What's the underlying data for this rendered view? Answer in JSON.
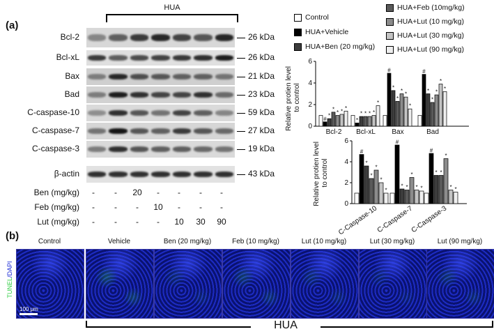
{
  "panel_a": {
    "label": "(a)",
    "hua_label": "HUA",
    "blots": [
      {
        "protein": "Bcl-2",
        "kda": "26 kDa",
        "intensity": [
          0.35,
          0.55,
          0.75,
          0.85,
          0.7,
          0.6,
          0.85
        ],
        "bg": "#d8d8d8"
      },
      {
        "protein": "Bcl-xL",
        "kda": "26 kDa",
        "intensity": [
          0.75,
          0.55,
          0.65,
          0.7,
          0.75,
          0.8,
          0.9
        ],
        "bg": "#e0e0e0"
      },
      {
        "protein": "Bax",
        "kda": "21 kDa",
        "intensity": [
          0.4,
          0.85,
          0.65,
          0.6,
          0.55,
          0.55,
          0.45
        ],
        "bg": "#cfcfcf"
      },
      {
        "protein": "Bad",
        "kda": "23 kDa",
        "intensity": [
          0.4,
          0.9,
          0.8,
          0.7,
          0.7,
          0.8,
          0.5
        ],
        "bg": "#d2d2d2"
      },
      {
        "protein": "C-caspase-10",
        "kda": "59 kDa",
        "intensity": [
          0.3,
          0.8,
          0.6,
          0.45,
          0.7,
          0.55,
          0.35
        ],
        "bg": "#dadada"
      },
      {
        "protein": "C-caspase-7",
        "kda": "27 kDa",
        "intensity": [
          0.45,
          0.95,
          0.6,
          0.55,
          0.75,
          0.6,
          0.5
        ],
        "bg": "#d6d6d6"
      },
      {
        "protein": "C-caspase-3",
        "kda": "19 kDa",
        "intensity": [
          0.4,
          0.8,
          0.6,
          0.55,
          0.55,
          0.5,
          0.45
        ],
        "bg": "#dadada"
      },
      {
        "protein": "β-actin",
        "kda": "43 kDa",
        "intensity": [
          0.8,
          0.8,
          0.8,
          0.8,
          0.8,
          0.8,
          0.8
        ],
        "bg": "#e2e2e2"
      }
    ],
    "treatments": [
      {
        "label": "Ben (mg/kg)",
        "values": [
          "-",
          "-",
          "20",
          "-",
          "-",
          "-",
          "-"
        ]
      },
      {
        "label": "Feb (mg/kg)",
        "values": [
          "-",
          "-",
          "-",
          "10",
          "-",
          "-",
          "-"
        ]
      },
      {
        "label": "Lut (mg/kg)",
        "values": [
          "-",
          "-",
          "-",
          "-",
          "10",
          "30",
          "90"
        ]
      }
    ],
    "legend": [
      {
        "label": "Control",
        "color": "#ffffff"
      },
      {
        "label": "HUA+Vehicle",
        "color": "#000000"
      },
      {
        "label": "HUA+Ben (20 mg/kg)",
        "color": "#3c3c3c"
      },
      {
        "label": "HUA+Feb (10mg/kg)",
        "color": "#5a5a5a"
      },
      {
        "label": "HUA+Lut (10 mg/kg)",
        "color": "#8c8c8c"
      },
      {
        "label": "HUA+Lut (30 mg/kg)",
        "color": "#c4c4c4"
      },
      {
        "label": "HUA+Lut (90 mg/kg)",
        "color": "#efefef"
      }
    ]
  },
  "chart_data": [
    {
      "type": "bar",
      "ylabel": "Relative protien level to control",
      "ylim": [
        0,
        6
      ],
      "yticks": [
        "0",
        "2",
        "4",
        "6"
      ],
      "categories": [
        "Bcl-2",
        "Bcl-xL",
        "Bax",
        "Bad"
      ],
      "series": [
        {
          "values": [
            1.0,
            1.0,
            1.0,
            1.0
          ]
        },
        {
          "values": [
            0.4,
            0.3,
            4.9,
            4.8
          ]
        },
        {
          "values": [
            0.7,
            0.9,
            3.3,
            3.0
          ]
        },
        {
          "values": [
            1.3,
            0.9,
            2.3,
            2.2
          ]
        },
        {
          "values": [
            1.0,
            0.9,
            3.0,
            2.9
          ]
        },
        {
          "values": [
            1.1,
            1.0,
            2.7,
            3.9
          ]
        },
        {
          "values": [
            1.4,
            1.9,
            1.6,
            3.2
          ]
        }
      ],
      "annotations": [
        [
          "",
          "",
          "",
          ""
        ],
        [
          "#",
          "*",
          "#",
          "#"
        ],
        [
          "*",
          "*",
          "*",
          "*"
        ],
        [
          "*",
          "*",
          "*",
          "*"
        ],
        [
          "*",
          "*",
          "*",
          "*"
        ],
        [
          "*",
          "*",
          "*",
          "*"
        ],
        [
          "*",
          "*",
          "*",
          "*"
        ]
      ]
    },
    {
      "type": "bar",
      "ylabel": "Relative protien level to control",
      "ylim": [
        0,
        6
      ],
      "yticks": [
        "0",
        "2",
        "4",
        "6"
      ],
      "categories": [
        "C-Caspase-10",
        "C-Caspase-7",
        "C-Caspase-3"
      ],
      "series": [
        {
          "values": [
            1.0,
            1.0,
            1.0
          ]
        },
        {
          "values": [
            4.7,
            5.6,
            4.8
          ]
        },
        {
          "values": [
            3.6,
            1.4,
            2.7
          ]
        },
        {
          "values": [
            2.4,
            1.3,
            2.7
          ]
        },
        {
          "values": [
            3.2,
            2.5,
            4.3
          ]
        },
        {
          "values": [
            2.0,
            1.3,
            1.3
          ]
        },
        {
          "values": [
            1.0,
            1.2,
            1.1
          ]
        }
      ],
      "annotations": [
        [
          "",
          "",
          ""
        ],
        [
          "#",
          "#",
          "#"
        ],
        [
          "*",
          "*",
          "*"
        ],
        [
          "*",
          "*",
          "*"
        ],
        [
          "*",
          "*",
          "*"
        ],
        [
          "*",
          "*",
          "*"
        ],
        [
          "*",
          "*",
          "*"
        ]
      ]
    }
  ],
  "panel_b": {
    "label": "(b)",
    "side_label_tunel": "TUNEL",
    "side_label_dapi": "/DAPI",
    "scale_bar": "100 μm",
    "hua_label": "HUA",
    "images": [
      {
        "title": "Control"
      },
      {
        "title": "Vehicle"
      },
      {
        "title": "Ben (20 mg/kg)"
      },
      {
        "title": "Feb (10 mg/kg)"
      },
      {
        "title": "Lut (10 mg/kg)"
      },
      {
        "title": "Lut (30 mg/kg)"
      },
      {
        "title": "Lut (90 mg/kg)"
      }
    ],
    "colors": {
      "tunel": "#2ecc40",
      "dapi": "#1a2bd6"
    }
  }
}
